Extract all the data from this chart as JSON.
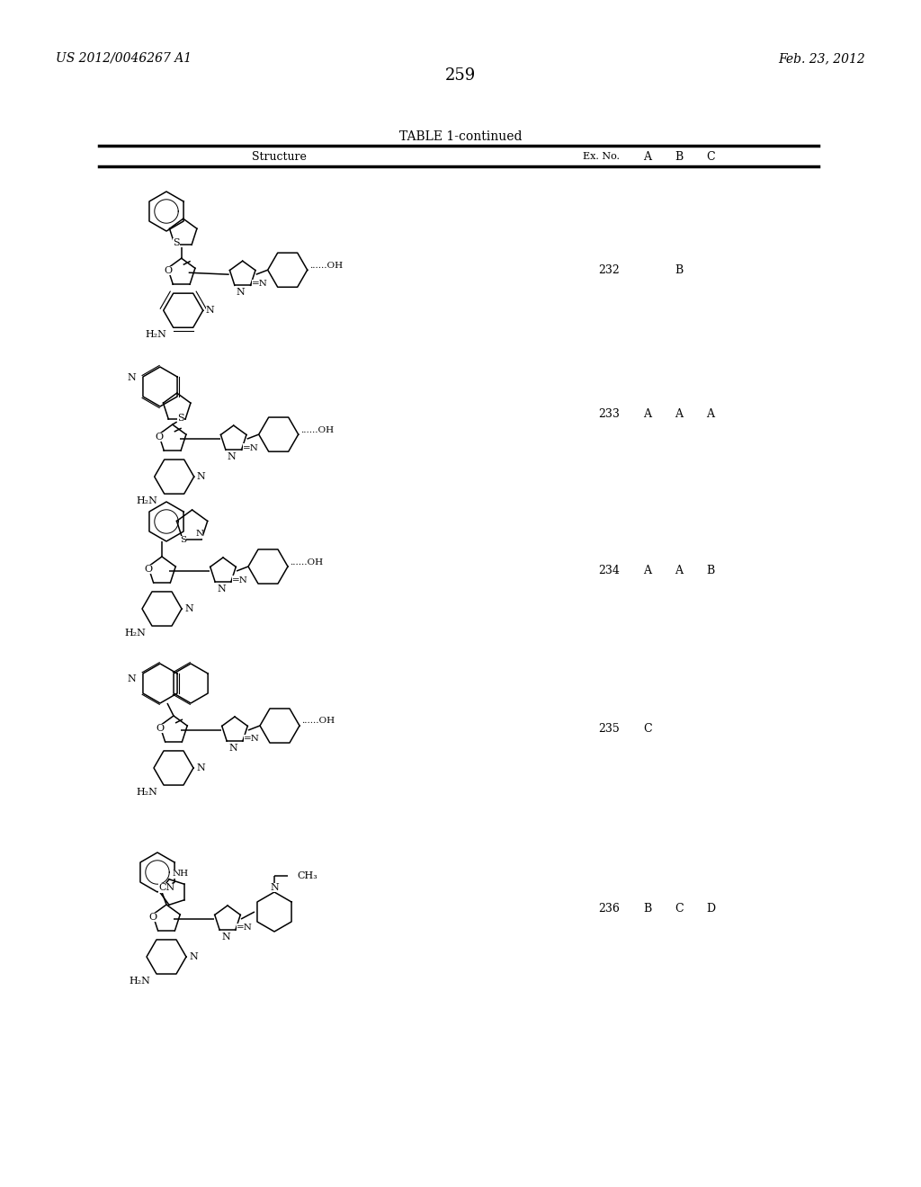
{
  "page_number": "259",
  "patent_number": "US 2012/0046267 A1",
  "patent_date": "Feb. 23, 2012",
  "table_title": "TABLE 1-continued",
  "col_headers": [
    "Structure",
    "Ex. No.",
    "A",
    "B",
    "C"
  ],
  "entries": [
    {
      "ex_no": "232",
      "A": "",
      "B": "B",
      "C": ""
    },
    {
      "ex_no": "233",
      "A": "A",
      "B": "A",
      "C": "A"
    },
    {
      "ex_no": "234",
      "A": "A",
      "B": "A",
      "C": "B"
    },
    {
      "ex_no": "235",
      "A": "C",
      "B": "",
      "C": ""
    },
    {
      "ex_no": "236",
      "A": "B",
      "B": "C",
      "C": "D"
    }
  ],
  "bg_color": "#ffffff",
  "text_color": "#000000",
  "font_size_header": 10,
  "font_size_body": 9,
  "font_size_page": 11,
  "font_size_patent": 10
}
